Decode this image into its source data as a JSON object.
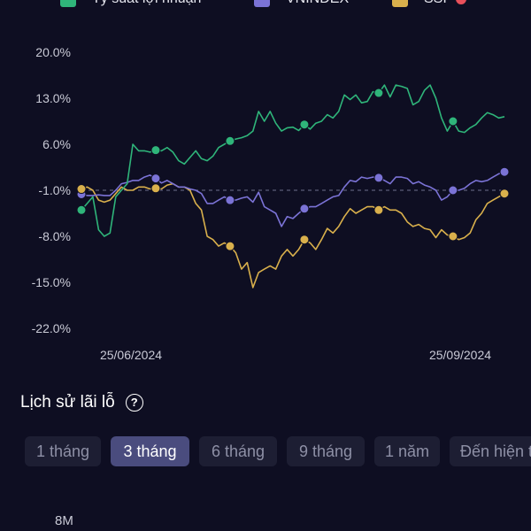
{
  "chart_data": {
    "type": "line",
    "x_labels": [
      "25/06/2024",
      "25/09/2024"
    ],
    "y_ticks": [
      "20.0%",
      "13.0%",
      "6.0%",
      "-1.0%",
      "-8.0%",
      "-15.0%",
      "-22.0%"
    ],
    "ylim": [
      -22,
      20
    ],
    "reference_line": -1.0,
    "legend": [
      {
        "label": "Tỷ suất lợi nhuận",
        "color": "#2fb57a",
        "marker": "square"
      },
      {
        "label": "VNINDEX",
        "color": "#7b73d6",
        "marker": "square"
      },
      {
        "label": "SSI",
        "color": "#d9b04c",
        "marker": "square",
        "badge_color": "#e8505b"
      }
    ],
    "series": [
      {
        "name": "Tỷ suất lợi nhuận",
        "color": "#2fb57a",
        "values": [
          -4.0,
          -3.0,
          -2.0,
          -7.0,
          -8.0,
          -7.5,
          -2.0,
          -1.0,
          0.0,
          6.0,
          5.0,
          5.0,
          4.8,
          5.1,
          5.0,
          5.5,
          4.8,
          3.5,
          3.0,
          4.0,
          5.0,
          3.8,
          3.5,
          4.2,
          5.5,
          6.0,
          6.5,
          6.8,
          7.0,
          7.3,
          8.0,
          11.0,
          9.5,
          11.0,
          9.2,
          8.0,
          8.5,
          8.6,
          8.1,
          9.0,
          8.3,
          9.2,
          9.5,
          10.5,
          10.0,
          11.0,
          13.5,
          12.8,
          13.5,
          12.3,
          12.5,
          14.0,
          13.8,
          15.0,
          13.2,
          15.0,
          14.8,
          14.5,
          12.0,
          12.5,
          14.2,
          15.0,
          13.0,
          10.0,
          8.0,
          9.5,
          8.0,
          7.8,
          8.5,
          9.0,
          10.0,
          10.8,
          10.5,
          10.0,
          10.2
        ]
      },
      {
        "name": "VNINDEX",
        "color": "#7b73d6",
        "values": [
          -1.6,
          -1.8,
          -1.8,
          -1.7,
          -1.8,
          -1.8,
          -1.0,
          0.0,
          0.2,
          0.5,
          0.5,
          1.0,
          1.3,
          0.8,
          0.1,
          0.5,
          0.0,
          -0.5,
          -0.5,
          -0.8,
          -1.0,
          -1.5,
          -3.0,
          -3.0,
          -2.5,
          -2.0,
          -2.5,
          -2.5,
          -2.2,
          -2.0,
          -2.8,
          -1.3,
          -3.5,
          -4.0,
          -4.5,
          -6.5,
          -5.0,
          -5.3,
          -4.5,
          -3.8,
          -3.5,
          -3.5,
          -3.0,
          -2.5,
          -2.0,
          -1.8,
          -0.5,
          0.5,
          0.3,
          1.0,
          0.8,
          1.0,
          0.9,
          0.5,
          0.0,
          1.0,
          1.0,
          0.8,
          0.0,
          0.3,
          -0.2,
          -0.5,
          -1.0,
          -2.5,
          -2.0,
          -1.0,
          -1.0,
          -0.7,
          0.0,
          0.5,
          0.3,
          0.5,
          1.0,
          1.5,
          1.8
        ]
      },
      {
        "name": "SSI",
        "color": "#d9b04c",
        "values": [
          -0.8,
          -0.5,
          -1.0,
          -2.5,
          -2.8,
          -2.5,
          -1.5,
          -0.5,
          -1.0,
          -1.0,
          -0.5,
          -0.5,
          -0.8,
          -0.7,
          -0.8,
          -0.2,
          0.0,
          -0.5,
          -0.5,
          -1.0,
          -3.0,
          -4.0,
          -8.0,
          -8.5,
          -9.5,
          -9.0,
          -9.5,
          -10.5,
          -13.0,
          -12.0,
          -15.8,
          -13.5,
          -13.0,
          -12.5,
          -13.0,
          -11.0,
          -10.0,
          -11.0,
          -10.0,
          -8.5,
          -9.0,
          -10.0,
          -8.5,
          -6.8,
          -7.5,
          -6.5,
          -5.0,
          -3.8,
          -4.5,
          -4.0,
          -3.5,
          -3.5,
          -4.0,
          -3.5,
          -4.0,
          -4.0,
          -4.5,
          -5.8,
          -6.5,
          -6.2,
          -6.8,
          -7.0,
          -8.2,
          -7.0,
          -7.8,
          -8.0,
          -8.5,
          -8.2,
          -7.5,
          -5.5,
          -4.5,
          -3.0,
          -2.5,
          -2.0,
          -1.5
        ]
      }
    ],
    "markers": [
      {
        "series": 0,
        "index": 0
      },
      {
        "series": 0,
        "index": 13
      },
      {
        "series": 0,
        "index": 26
      },
      {
        "series": 0,
        "index": 39
      },
      {
        "series": 0,
        "index": 52
      },
      {
        "series": 0,
        "index": 65
      },
      {
        "series": 1,
        "index": 0
      },
      {
        "series": 1,
        "index": 13
      },
      {
        "series": 1,
        "index": 26
      },
      {
        "series": 1,
        "index": 39
      },
      {
        "series": 1,
        "index": 52
      },
      {
        "series": 1,
        "index": 65
      },
      {
        "series": 1,
        "index": 74
      },
      {
        "series": 2,
        "index": 0
      },
      {
        "series": 2,
        "index": 13
      },
      {
        "series": 2,
        "index": 26
      },
      {
        "series": 2,
        "index": 39
      },
      {
        "series": 2,
        "index": 52
      },
      {
        "series": 2,
        "index": 65
      },
      {
        "series": 2,
        "index": 74
      }
    ]
  },
  "pnl_history": {
    "title": "Lịch sử lãi lỗ",
    "help_icon": "question-circle-icon",
    "tabs": [
      {
        "label": "1 tháng",
        "active": false
      },
      {
        "label": "3 tháng",
        "active": true
      },
      {
        "label": "6 tháng",
        "active": false
      },
      {
        "label": "9 tháng",
        "active": false
      },
      {
        "label": "1 năm",
        "active": false
      },
      {
        "label": "Đến hiện tại",
        "active": false
      }
    ],
    "axis_top_label": "8M"
  }
}
